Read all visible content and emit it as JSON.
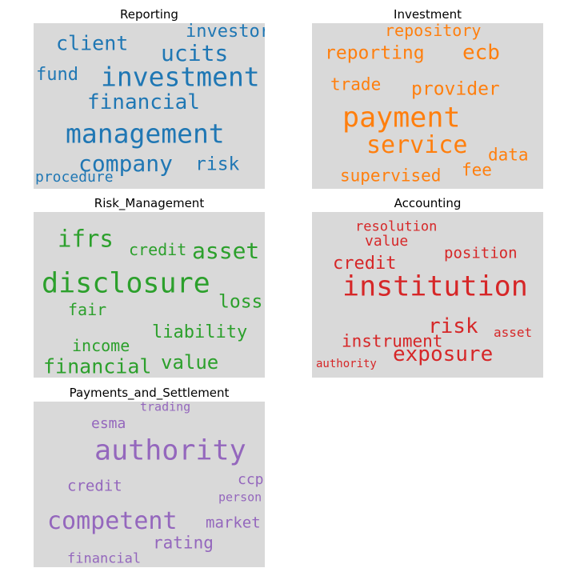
{
  "chart_data": [
    {
      "type": "wordcloud",
      "title": "Reporting",
      "color": "#1f77b4",
      "words": [
        {
          "text": "investor",
          "weight": 22
        },
        {
          "text": "client",
          "weight": 25
        },
        {
          "text": "ucits",
          "weight": 28
        },
        {
          "text": "fund",
          "weight": 22
        },
        {
          "text": "investment",
          "weight": 33
        },
        {
          "text": "financial",
          "weight": 26
        },
        {
          "text": "management",
          "weight": 33
        },
        {
          "text": "company",
          "weight": 28
        },
        {
          "text": "risk",
          "weight": 23
        },
        {
          "text": "procedure",
          "weight": 18
        }
      ]
    },
    {
      "type": "wordcloud",
      "title": "Investment",
      "color": "#ff7f0e",
      "words": [
        {
          "text": "repository",
          "weight": 20
        },
        {
          "text": "reporting",
          "weight": 23
        },
        {
          "text": "ecb",
          "weight": 26
        },
        {
          "text": "trade",
          "weight": 21
        },
        {
          "text": "provider",
          "weight": 23
        },
        {
          "text": "payment",
          "weight": 35
        },
        {
          "text": "service",
          "weight": 30
        },
        {
          "text": "data",
          "weight": 21
        },
        {
          "text": "fee",
          "weight": 21
        },
        {
          "text": "supervised",
          "weight": 21
        }
      ]
    },
    {
      "type": "wordcloud",
      "title": "Risk_Management",
      "color": "#2ca02c",
      "words": [
        {
          "text": "ifrs",
          "weight": 29
        },
        {
          "text": "credit",
          "weight": 20
        },
        {
          "text": "asset",
          "weight": 28
        },
        {
          "text": "disclosure",
          "weight": 35
        },
        {
          "text": "loss",
          "weight": 23
        },
        {
          "text": "fair",
          "weight": 20
        },
        {
          "text": "liability",
          "weight": 22
        },
        {
          "text": "income",
          "weight": 20
        },
        {
          "text": "value",
          "weight": 24
        },
        {
          "text": "financial",
          "weight": 25
        }
      ]
    },
    {
      "type": "wordcloud",
      "title": "Accounting",
      "color": "#d62728",
      "words": [
        {
          "text": "resolution",
          "weight": 17
        },
        {
          "text": "value",
          "weight": 18
        },
        {
          "text": "position",
          "weight": 19
        },
        {
          "text": "credit",
          "weight": 22
        },
        {
          "text": "institution",
          "weight": 35
        },
        {
          "text": "risk",
          "weight": 26
        },
        {
          "text": "asset",
          "weight": 16
        },
        {
          "text": "instrument",
          "weight": 21
        },
        {
          "text": "exposure",
          "weight": 26
        },
        {
          "text": "authority",
          "weight": 14
        }
      ]
    },
    {
      "type": "wordcloud",
      "title": "Payments_and_Settlement",
      "color": "#9467bd",
      "words": [
        {
          "text": "trading",
          "weight": 15
        },
        {
          "text": "esma",
          "weight": 18
        },
        {
          "text": "authority",
          "weight": 35
        },
        {
          "text": "ccp",
          "weight": 18
        },
        {
          "text": "credit",
          "weight": 19
        },
        {
          "text": "person",
          "weight": 15
        },
        {
          "text": "competent",
          "weight": 30
        },
        {
          "text": "market",
          "weight": 19
        },
        {
          "text": "rating",
          "weight": 21
        },
        {
          "text": "financial",
          "weight": 17
        }
      ]
    }
  ]
}
